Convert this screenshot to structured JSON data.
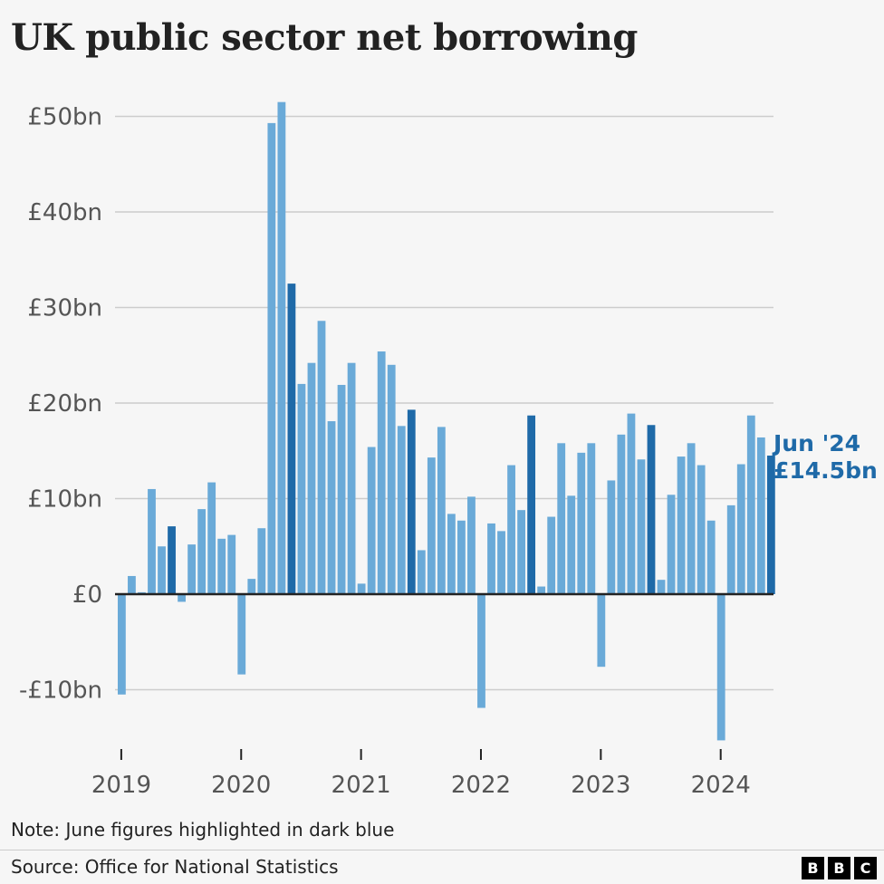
{
  "title": "UK public sector net borrowing",
  "note": "Note: June figures highlighted in dark blue",
  "source": "Source: Office for National Statistics",
  "logo_letters": [
    "B",
    "B",
    "C"
  ],
  "colors": {
    "bar": "#6aaad8",
    "highlight": "#1f6aa8",
    "grid": "#cccccc",
    "zero": "#222222"
  },
  "annotation": {
    "line1": "Jun '24",
    "line2": "£14.5bn"
  },
  "chart_data": {
    "type": "bar",
    "title": "UK public sector net borrowing",
    "xlabel": "",
    "ylabel": "",
    "ylim": [
      -15.5,
      52
    ],
    "yticks": [
      {
        "value": 50,
        "label": "£50bn"
      },
      {
        "value": 40,
        "label": "£40bn"
      },
      {
        "value": 30,
        "label": "£30bn"
      },
      {
        "value": 20,
        "label": "£20bn"
      },
      {
        "value": 10,
        "label": "£10bn"
      },
      {
        "value": 0,
        "label": "£0"
      },
      {
        "value": -10,
        "label": "-£10bn"
      }
    ],
    "xticks": [
      "2019",
      "2020",
      "2021",
      "2022",
      "2023",
      "2024"
    ],
    "grid": true,
    "start": "2019-01",
    "highlight": "June figures",
    "values": [
      -10.5,
      1.9,
      0.2,
      11.0,
      5.0,
      7.1,
      -0.8,
      5.2,
      8.9,
      11.7,
      5.8,
      6.2,
      -8.4,
      1.6,
      6.9,
      49.3,
      51.5,
      32.5,
      22.0,
      24.2,
      28.6,
      18.1,
      21.9,
      24.2,
      1.1,
      15.4,
      25.4,
      24.0,
      17.6,
      19.3,
      4.6,
      14.3,
      17.5,
      8.4,
      7.7,
      10.2,
      -11.9,
      7.4,
      6.6,
      13.5,
      8.8,
      18.7,
      0.8,
      8.1,
      15.8,
      10.3,
      14.8,
      15.8,
      -7.6,
      11.9,
      16.7,
      18.9,
      14.1,
      17.7,
      1.5,
      10.4,
      14.4,
      15.8,
      13.5,
      7.7,
      -15.3,
      9.3,
      13.6,
      18.7,
      16.4,
      14.5
    ]
  }
}
